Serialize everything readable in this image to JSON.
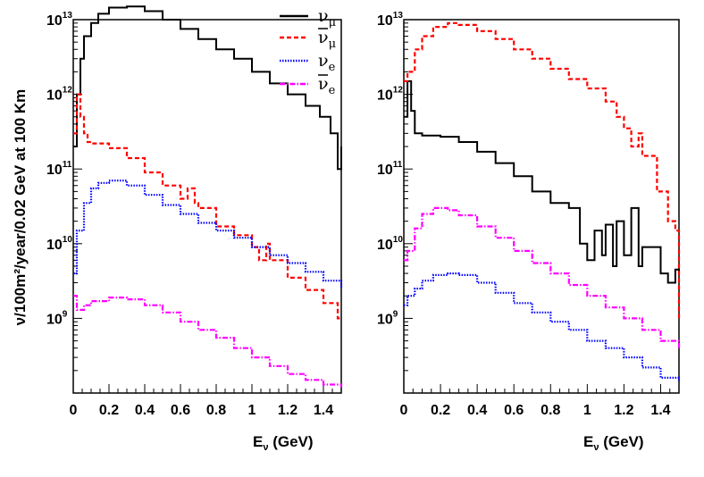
{
  "chart_data": [
    {
      "type": "line",
      "panel": "left",
      "title": "",
      "xlabel": "E_ν (GeV)",
      "ylabel": "ν/100m²/year/0.02 GeV at 100 Km",
      "xlim": [
        0,
        1.5
      ],
      "ylim": [
        100000000.0,
        10000000000000.0
      ],
      "yscale": "log",
      "x_ticks": [
        "0",
        "0.2",
        "0.4",
        "0.6",
        "0.8",
        "1",
        "1.2",
        "1.4"
      ],
      "y_ticks": [
        {
          "base": "10",
          "exp": "9",
          "value": 1000000000.0
        },
        {
          "base": "10",
          "exp": "10",
          "value": 10000000000.0
        },
        {
          "base": "10",
          "exp": "11",
          "value": 100000000000.0
        },
        {
          "base": "10",
          "exp": "12",
          "value": 1000000000000.0
        },
        {
          "base": "10",
          "exp": "13",
          "value": 10000000000000.0
        }
      ],
      "series": [
        {
          "name": "ν_μ",
          "color": "#000000",
          "style": "solid",
          "x": [
            0.0,
            0.02,
            0.04,
            0.06,
            0.1,
            0.14,
            0.2,
            0.3,
            0.4,
            0.5,
            0.6,
            0.7,
            0.8,
            0.9,
            1.0,
            1.1,
            1.2,
            1.3,
            1.38,
            1.44,
            1.48,
            1.5
          ],
          "values": [
            200000000000.0,
            1000000000000.0,
            3000000000000.0,
            6000000000000.0,
            9000000000000.0,
            12000000000000.0,
            14500000000000.0,
            15000000000000.0,
            13000000000000.0,
            10000000000000.0,
            7500000000000.0,
            5500000000000.0,
            4000000000000.0,
            3000000000000.0,
            2000000000000.0,
            1400000000000.0,
            1000000000000.0,
            700000000000.0,
            500000000000.0,
            300000000000.0,
            100000000000.0,
            200000000000.0
          ]
        },
        {
          "name": "ν̄_μ",
          "color": "#ff0000",
          "style": "dashed",
          "x": [
            0.0,
            0.02,
            0.04,
            0.06,
            0.08,
            0.1,
            0.2,
            0.3,
            0.4,
            0.5,
            0.6,
            0.64,
            0.68,
            0.7,
            0.8,
            0.9,
            1.0,
            1.04,
            1.08,
            1.1,
            1.2,
            1.3,
            1.4,
            1.48
          ],
          "values": [
            300000000000.0,
            1000000000000.0,
            500000000000.0,
            300000000000.0,
            230000000000.0,
            220000000000.0,
            190000000000.0,
            140000000000.0,
            90000000000.0,
            60000000000.0,
            40000000000.0,
            55000000000.0,
            35000000000.0,
            30000000000.0,
            17000000000.0,
            13000000000.0,
            9000000000.0,
            6000000000.0,
            10000000000.0,
            6000000000.0,
            3500000000.0,
            2400000000.0,
            1600000000.0,
            1000000000.0
          ]
        },
        {
          "name": "ν_e",
          "color": "#0000ff",
          "style": "dotted",
          "x": [
            0.0,
            0.02,
            0.06,
            0.1,
            0.14,
            0.2,
            0.3,
            0.4,
            0.5,
            0.6,
            0.7,
            0.8,
            0.9,
            1.0,
            1.1,
            1.2,
            1.3,
            1.4,
            1.5
          ],
          "values": [
            4000000000.0,
            15000000000.0,
            35000000000.0,
            55000000000.0,
            65000000000.0,
            70000000000.0,
            60000000000.0,
            45000000000.0,
            33000000000.0,
            25000000000.0,
            19000000000.0,
            15000000000.0,
            12000000000.0,
            9000000000.0,
            7000000000.0,
            5500000000.0,
            4200000000.0,
            3200000000.0,
            2500000000.0
          ]
        },
        {
          "name": "ν̄_e",
          "color": "#ff00ff",
          "style": "dashdot",
          "x": [
            0.0,
            0.02,
            0.06,
            0.1,
            0.2,
            0.3,
            0.4,
            0.5,
            0.6,
            0.7,
            0.8,
            0.9,
            1.0,
            1.1,
            1.2,
            1.3,
            1.4,
            1.5
          ],
          "values": [
            2000000000.0,
            1300000000.0,
            1500000000.0,
            1700000000.0,
            1900000000.0,
            1800000000.0,
            1500000000.0,
            1200000000.0,
            900000000.0,
            700000000.0,
            550000000.0,
            400000000.0,
            300000000.0,
            230000000.0,
            180000000.0,
            150000000.0,
            130000000.0,
            120000000.0
          ]
        }
      ]
    },
    {
      "type": "line",
      "panel": "right",
      "title": "",
      "xlabel": "E_ν (GeV)",
      "ylabel": "",
      "xlim": [
        0,
        1.5
      ],
      "ylim": [
        100000000.0,
        10000000000000.0
      ],
      "yscale": "log",
      "x_ticks": [
        "0",
        "0.2",
        "0.4",
        "0.6",
        "0.8",
        "1",
        "1.2",
        "1.4"
      ],
      "y_ticks": [
        {
          "base": "10",
          "exp": "9",
          "value": 1000000000.0
        },
        {
          "base": "10",
          "exp": "10",
          "value": 10000000000.0
        },
        {
          "base": "10",
          "exp": "11",
          "value": 100000000000.0
        },
        {
          "base": "10",
          "exp": "12",
          "value": 1000000000000.0
        },
        {
          "base": "10",
          "exp": "13",
          "value": 10000000000000.0
        }
      ],
      "series": [
        {
          "name": "ν_μ",
          "color": "#000000",
          "style": "solid",
          "x": [
            0.0,
            0.02,
            0.04,
            0.06,
            0.1,
            0.2,
            0.3,
            0.4,
            0.5,
            0.6,
            0.7,
            0.8,
            0.9,
            0.96,
            1.0,
            1.04,
            1.08,
            1.1,
            1.14,
            1.16,
            1.2,
            1.24,
            1.28,
            1.3,
            1.4,
            1.44,
            1.48,
            1.5
          ],
          "values": [
            500000000000.0,
            1500000000000.0,
            600000000000.0,
            300000000000.0,
            280000000000.0,
            270000000000.0,
            230000000000.0,
            170000000000.0,
            120000000000.0,
            80000000000.0,
            50000000000.0,
            35000000000.0,
            30000000000.0,
            10000000000.0,
            6000000000.0,
            15000000000.0,
            7000000000.0,
            18000000000.0,
            5000000000.0,
            20000000000.0,
            7000000000.0,
            30000000000.0,
            5000000000.0,
            9000000000.0,
            4000000000.0,
            3000000000.0,
            4500000000.0,
            4000000000.0
          ]
        },
        {
          "name": "ν̄_μ",
          "color": "#ff0000",
          "style": "dashed",
          "x": [
            0.0,
            0.02,
            0.06,
            0.1,
            0.16,
            0.24,
            0.3,
            0.4,
            0.5,
            0.6,
            0.7,
            0.8,
            0.9,
            1.0,
            1.1,
            1.16,
            1.2,
            1.24,
            1.28,
            1.3,
            1.38,
            1.44,
            1.48,
            1.5
          ],
          "values": [
            1500000000000.0,
            2000000000000.0,
            4000000000000.0,
            6000000000000.0,
            8000000000000.0,
            9000000000000.0,
            8500000000000.0,
            7000000000000.0,
            5500000000000.0,
            4000000000000.0,
            3000000000000.0,
            2200000000000.0,
            1600000000000.0,
            1200000000000.0,
            800000000000.0,
            500000000000.0,
            350000000000.0,
            200000000000.0,
            300000000000.0,
            150000000000.0,
            50000000000.0,
            20000000000.0,
            15000000000.0,
            1000000000.0
          ]
        },
        {
          "name": "ν_e",
          "color": "#0000ff",
          "style": "dotted",
          "x": [
            0.0,
            0.02,
            0.06,
            0.1,
            0.16,
            0.24,
            0.3,
            0.4,
            0.5,
            0.6,
            0.7,
            0.8,
            0.9,
            1.0,
            1.1,
            1.2,
            1.3,
            1.4,
            1.5
          ],
          "values": [
            1500000000.0,
            2000000000.0,
            2500000000.0,
            3200000000.0,
            3800000000.0,
            4000000000.0,
            3800000000.0,
            3000000000.0,
            2200000000.0,
            1600000000.0,
            1200000000.0,
            900000000.0,
            700000000.0,
            500000000.0,
            400000000.0,
            300000000.0,
            220000000.0,
            160000000.0,
            140000000.0
          ]
        },
        {
          "name": "ν̄_e",
          "color": "#ff00ff",
          "style": "dashdot",
          "x": [
            0.0,
            0.02,
            0.06,
            0.1,
            0.16,
            0.24,
            0.3,
            0.4,
            0.5,
            0.6,
            0.7,
            0.8,
            0.9,
            1.0,
            1.1,
            1.2,
            1.3,
            1.4,
            1.5
          ],
          "values": [
            6000000000.0,
            8000000000.0,
            16000000000.0,
            25000000000.0,
            30000000000.0,
            28000000000.0,
            24000000000.0,
            17000000000.0,
            12000000000.0,
            8000000000.0,
            5500000000.0,
            4000000000.0,
            2800000000.0,
            2000000000.0,
            1400000000.0,
            1000000000.0,
            700000000.0,
            500000000.0,
            400000000.0
          ]
        }
      ]
    }
  ],
  "legend": [
    {
      "base": "ν",
      "sub": "μ",
      "bar": false,
      "color": "#000000",
      "style": "solid"
    },
    {
      "base": "ν",
      "sub": "μ",
      "bar": true,
      "color": "#ff0000",
      "style": "dashed"
    },
    {
      "base": "ν",
      "sub": "e",
      "bar": false,
      "color": "#0000ff",
      "style": "dotted"
    },
    {
      "base": "ν",
      "sub": "e",
      "bar": true,
      "color": "#ff00ff",
      "style": "dashdot"
    }
  ],
  "axis_titles": {
    "y": "ν/100m²/year/0.02 GeV at 100 Km",
    "x_left": {
      "base": "E",
      "sub": "ν",
      "rest": " (GeV)"
    },
    "x_right": {
      "base": "E",
      "sub": "ν",
      "rest": " (GeV)"
    }
  }
}
